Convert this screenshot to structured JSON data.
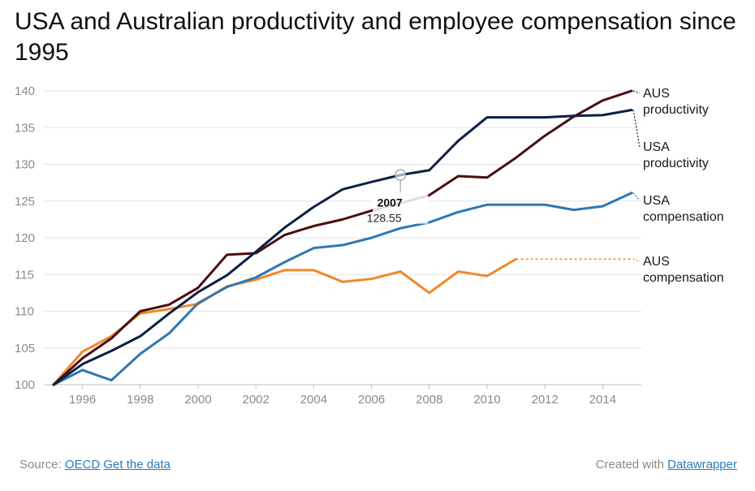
{
  "title": "USA and Australian productivity and employee compensation since 1995",
  "colors": {
    "aus_productivity": "#4a0e0e",
    "usa_productivity": "#0d1f45",
    "usa_compensation": "#2f77b0",
    "aus_compensation": "#ee8a2a",
    "grid": "#e2e2e2",
    "tick": "#8a8a8a"
  },
  "chart_data": {
    "type": "line",
    "title": "USA and Australian productivity and employee compensation since 1995",
    "xlabel": "",
    "ylabel": "",
    "x": [
      1995,
      1996,
      1997,
      1998,
      1999,
      2000,
      2001,
      2002,
      2003,
      2004,
      2005,
      2006,
      2007,
      2008,
      2009,
      2010,
      2011,
      2012,
      2013,
      2014,
      2015
    ],
    "xlim": [
      1995,
      2015
    ],
    "ylim": [
      100,
      140
    ],
    "xticks": [
      1996,
      1998,
      2000,
      2002,
      2004,
      2006,
      2008,
      2010,
      2012,
      2014
    ],
    "yticks": [
      100,
      105,
      110,
      115,
      120,
      125,
      130,
      135,
      140
    ],
    "grid": true,
    "series": [
      {
        "key": "aus_productivity",
        "name": "AUS productivity",
        "label_lines": [
          "AUS",
          "productivity"
        ],
        "values": [
          100,
          103.6,
          106.3,
          110.0,
          110.9,
          113.2,
          117.7,
          117.9,
          120.4,
          121.6,
          122.5,
          123.7,
          124.7,
          125.8,
          128.4,
          128.2,
          130.9,
          133.9,
          136.5,
          138.7,
          140.0
        ]
      },
      {
        "key": "usa_productivity",
        "name": "USA productivity",
        "label_lines": [
          "USA",
          "productivity"
        ],
        "values": [
          100,
          102.8,
          104.6,
          106.6,
          109.7,
          112.6,
          114.9,
          118.1,
          121.4,
          124.2,
          126.6,
          127.6,
          128.55,
          129.2,
          133.2,
          136.4,
          136.4,
          136.4,
          136.6,
          136.7,
          137.4
        ]
      },
      {
        "key": "usa_compensation",
        "name": "USA compensation",
        "label_lines": [
          "USA",
          "compensation"
        ],
        "values": [
          100,
          102.0,
          100.6,
          104.2,
          107.0,
          111.1,
          113.3,
          114.6,
          116.7,
          118.6,
          119.0,
          120.0,
          121.3,
          122.1,
          123.5,
          124.5,
          124.5,
          124.5,
          123.8,
          124.3,
          126.1
        ]
      },
      {
        "key": "aus_compensation",
        "name": "AUS compensation",
        "label_lines": [
          "AUS",
          "compensation"
        ],
        "values": [
          100,
          104.5,
          106.6,
          109.7,
          110.3,
          111.0,
          113.4,
          114.3,
          115.6,
          115.6,
          114.0,
          114.4,
          115.4,
          112.5,
          115.4,
          114.8,
          117.1,
          null,
          null,
          null,
          null
        ],
        "extend_dashed_to": 2015
      }
    ],
    "annotations": [
      {
        "series": "usa_productivity",
        "x": 2007,
        "label": "2007",
        "value": "128.55"
      }
    ]
  },
  "footer": {
    "source_prefix": "Source:",
    "source_link": "OECD",
    "data_link": "Get the data",
    "credit_prefix": "Created with",
    "credit_link": "Datawrapper"
  }
}
